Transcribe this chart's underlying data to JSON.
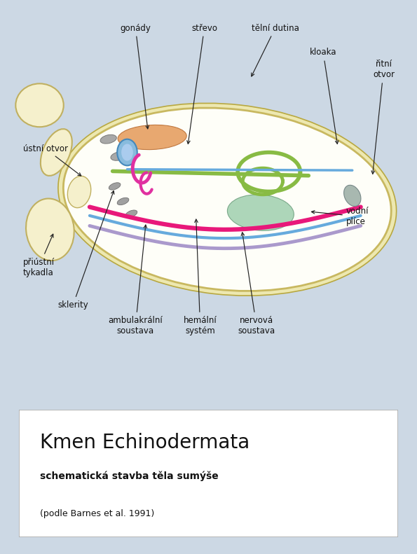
{
  "bg_color": "#ccd8e4",
  "fig_bg": "#ccd8e4",
  "title": "Kmen Echinodermata",
  "subtitle": "schematická stavba těla sumýše",
  "citation": "(podle Barnes et al. 1991)",
  "title_fontsize": 20,
  "subtitle_fontsize": 10,
  "citation_fontsize": 9,
  "body_fill": "#fefef8",
  "body_edge": "#c8b860",
  "tentacle_fill": "#f5f0cc",
  "gonad_fill": "#e8a870",
  "gonad_edge": "#c07840",
  "sklerity_fill": "#aaaaaa",
  "lung_fill": "#99ccaa",
  "lung_edge": "#669977",
  "cloaka_fill": "#aabbaa",
  "cloaka_edge": "#778877",
  "intestine_color": "#88bb44",
  "pink_color": "#e8187a",
  "blue_color": "#66aadd",
  "purple_color": "#aa99cc",
  "blue_ring_color": "#5599cc",
  "pink_c_color": "#e030a0",
  "label_fontsize": 8.5
}
